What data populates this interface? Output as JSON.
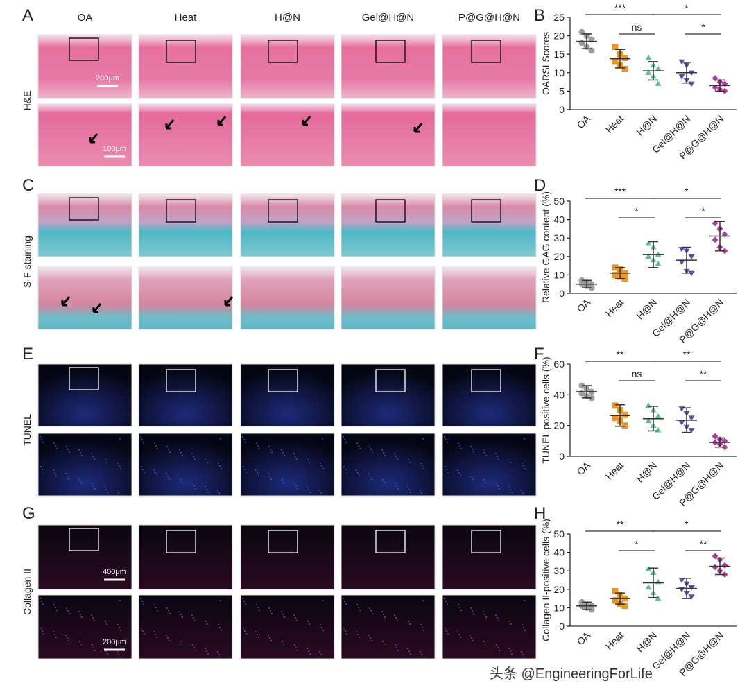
{
  "figure": {
    "panel_letters": [
      "A",
      "B",
      "C",
      "D",
      "E",
      "F",
      "G",
      "H"
    ],
    "columns": [
      "OA",
      "Heat",
      "H@N",
      "Gel@H@N",
      "P@G@H@N"
    ],
    "rows": [
      "H&E",
      "S-F staining",
      "TUNEL",
      "Collagen II"
    ],
    "scale_bars": [
      "200μm",
      "100μm",
      "400μm",
      "200μm"
    ],
    "watermark": "头条 @EngineeringForLife"
  },
  "chart_data": [
    {
      "type": "dot",
      "ylabel": "OARSI Scores",
      "ylim": [
        0,
        25
      ],
      "yticks": [
        0,
        5,
        10,
        15,
        20,
        25
      ],
      "categories": [
        "OA",
        "Heat",
        "H@N",
        "Gel@H@N",
        "P@G@H@N"
      ],
      "colors": [
        "#9e9e9e",
        "#e8962e",
        "#5cc08f",
        "#5b4ea8",
        "#b23a9e"
      ],
      "markers": [
        "circle",
        "square",
        "triangle",
        "triangle-down",
        "diamond"
      ],
      "means": [
        18.5,
        13.8,
        10.5,
        10,
        6.5
      ],
      "errors": [
        2,
        2.5,
        2.5,
        2.8,
        1.5
      ],
      "points": [
        [
          21,
          20,
          19,
          18,
          17,
          16
        ],
        [
          17,
          15,
          14,
          13,
          12,
          11
        ],
        [
          14,
          12,
          11,
          10,
          9,
          7
        ],
        [
          13,
          12,
          10,
          9,
          8,
          7
        ],
        [
          8.5,
          7.5,
          7,
          6,
          5.5,
          5
        ]
      ],
      "brackets": [
        {
          "label": "***",
          "span": [
            "OA",
            "H@N"
          ]
        },
        {
          "label": "ns",
          "span": [
            "Heat",
            "H@N"
          ]
        },
        {
          "label": "*",
          "span": [
            "H@N",
            "P@G@H@N"
          ]
        },
        {
          "label": "*",
          "span": [
            "Gel@H@N",
            "P@G@H@N"
          ]
        }
      ]
    },
    {
      "type": "dot",
      "ylabel": "Relative GAG content (%)",
      "ylim": [
        0,
        50
      ],
      "yticks": [
        0,
        10,
        20,
        30,
        40,
        50
      ],
      "categories": [
        "OA",
        "Heat",
        "H@N",
        "Gel@H@N",
        "P@G@H@N"
      ],
      "colors": [
        "#9e9e9e",
        "#e8962e",
        "#5cc08f",
        "#5b4ea8",
        "#b23a9e"
      ],
      "markers": [
        "circle",
        "square",
        "triangle",
        "triangle-down",
        "diamond"
      ],
      "means": [
        5,
        11,
        21,
        18,
        31
      ],
      "errors": [
        2,
        3,
        7,
        7,
        8
      ],
      "points": [
        [
          7,
          6,
          5,
          5,
          4,
          3
        ],
        [
          14,
          13,
          11,
          10,
          9,
          8
        ],
        [
          27,
          25,
          21,
          20,
          18,
          16
        ],
        [
          24,
          23,
          20,
          17,
          12,
          11
        ],
        [
          38,
          35,
          32,
          29,
          25,
          23
        ]
      ],
      "brackets": [
        {
          "label": "***",
          "span": [
            "OA",
            "H@N"
          ]
        },
        {
          "label": "*",
          "span": [
            "Heat",
            "H@N"
          ]
        },
        {
          "label": "*",
          "span": [
            "H@N",
            "P@G@H@N"
          ]
        },
        {
          "label": "*",
          "span": [
            "Gel@H@N",
            "P@G@H@N"
          ]
        }
      ]
    },
    {
      "type": "dot",
      "ylabel": "TUNEL positive cells (%)",
      "ylim": [
        0,
        60
      ],
      "yticks": [
        0,
        20,
        40,
        60
      ],
      "categories": [
        "OA",
        "Heat",
        "H@N",
        "Gel@H@N",
        "P@G@H@N"
      ],
      "colors": [
        "#9e9e9e",
        "#e8962e",
        "#5cc08f",
        "#5b4ea8",
        "#b23a9e"
      ],
      "markers": [
        "circle",
        "square",
        "triangle",
        "triangle-down",
        "diamond"
      ],
      "means": [
        42,
        26.5,
        24.5,
        23.5,
        9
      ],
      "errors": [
        4,
        7,
        8,
        8,
        3
      ],
      "points": [
        [
          46,
          44,
          42,
          41,
          39,
          38
        ],
        [
          33,
          30,
          27,
          25,
          23,
          20
        ],
        [
          33,
          30,
          26,
          23,
          20,
          17
        ],
        [
          31,
          28,
          25,
          22,
          19,
          17
        ],
        [
          13,
          11,
          10,
          9,
          8,
          6
        ]
      ],
      "brackets": [
        {
          "label": "**",
          "span": [
            "OA",
            "H@N"
          ]
        },
        {
          "label": "ns",
          "span": [
            "Heat",
            "H@N"
          ]
        },
        {
          "label": "**",
          "span": [
            "H@N",
            "P@G@H@N"
          ]
        },
        {
          "label": "**",
          "span": [
            "Gel@H@N",
            "P@G@H@N"
          ]
        }
      ]
    },
    {
      "type": "dot",
      "ylabel": "Collagen II-positive cells (%)",
      "ylim": [
        0,
        50
      ],
      "yticks": [
        0,
        10,
        20,
        30,
        40,
        50
      ],
      "categories": [
        "OA",
        "Heat",
        "H@N",
        "Gel@H@N",
        "P@G@H@N"
      ],
      "colors": [
        "#9e9e9e",
        "#e8962e",
        "#5cc08f",
        "#5b4ea8",
        "#b23a9e"
      ],
      "markers": [
        "circle",
        "square",
        "triangle",
        "triangle-down",
        "diamond"
      ],
      "means": [
        11,
        15,
        23.5,
        20.5,
        32.5
      ],
      "errors": [
        2,
        3,
        8,
        5.5,
        4.5
      ],
      "points": [
        [
          13,
          12,
          11,
          11,
          10,
          9
        ],
        [
          19,
          17,
          15,
          14,
          12,
          11
        ],
        [
          31,
          29,
          24,
          21,
          18,
          15
        ],
        [
          25,
          23,
          21,
          20,
          18,
          16
        ],
        [
          38,
          36,
          33,
          32,
          30,
          28
        ]
      ],
      "brackets": [
        {
          "label": "**",
          "span": [
            "OA",
            "H@N"
          ]
        },
        {
          "label": "*",
          "span": [
            "Heat",
            "H@N"
          ]
        },
        {
          "label": "*",
          "span": [
            "H@N",
            "P@G@H@N"
          ]
        },
        {
          "label": "**",
          "span": [
            "Gel@H@N",
            "P@G@H@N"
          ]
        }
      ]
    }
  ]
}
